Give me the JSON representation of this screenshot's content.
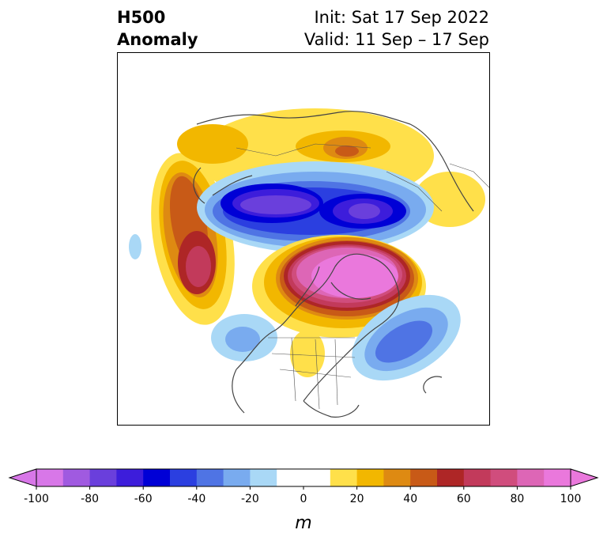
{
  "header": {
    "title_line1": "H500",
    "title_line2": "Anomaly",
    "init_label": "Init: Sat 17 Sep 2022",
    "valid_label": "Valid: 11 Sep – 17 Sep"
  },
  "colorbar": {
    "unit": "m",
    "min": -100,
    "max": 100,
    "step": 10,
    "tick_labels": [
      "-100",
      "-80",
      "-60",
      "-40",
      "-20",
      "0",
      "20",
      "40",
      "60",
      "80",
      "100"
    ],
    "colors": [
      "#d877e8",
      "#a05ae0",
      "#6a3fdc",
      "#3d1ddb",
      "#0000d6",
      "#2b3fe0",
      "#4f74e4",
      "#79abef",
      "#a9d8f6",
      "#ffffff",
      "#ffffff",
      "#ffe04a",
      "#f2b700",
      "#de8a12",
      "#c85a17",
      "#ae2626",
      "#c23a5b",
      "#d04d7d",
      "#dd66b6",
      "#ea78dc"
    ],
    "extend_low_color": "#d877e8",
    "extend_high_color": "#ea78dc"
  },
  "map": {
    "projection": "north-polar-stereographic",
    "coastline_color": "#444444"
  }
}
